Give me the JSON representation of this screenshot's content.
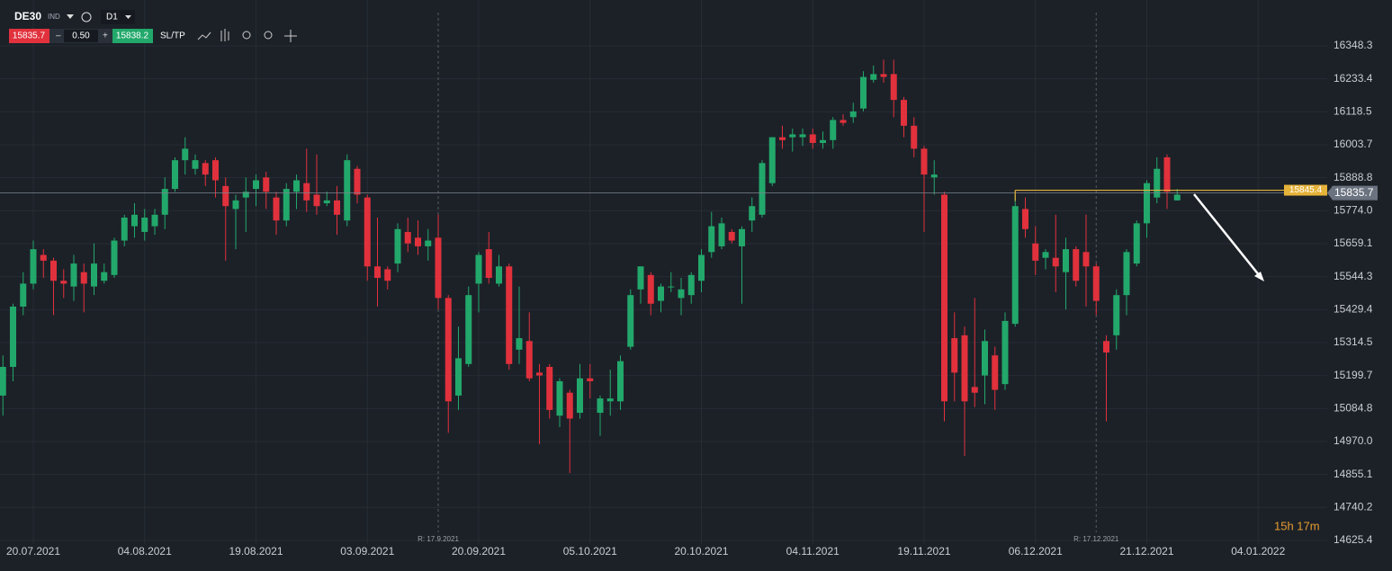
{
  "toolbar": {
    "symbol": "DE30",
    "symbol_type": "IND",
    "timeframe": "D1",
    "sell_price": "15835.7",
    "spread": "0.50",
    "buy_price": "15838.2",
    "sltp": "SL/TP"
  },
  "chart_data": {
    "type": "candlestick",
    "categories": [
      null,
      null,
      null,
      "20.07.2021",
      null,
      null,
      null,
      null,
      null,
      null,
      null,
      null,
      null,
      null,
      "04.08.2021",
      null,
      null,
      null,
      null,
      null,
      null,
      null,
      null,
      null,
      null,
      "19.08.2021",
      null,
      null,
      null,
      null,
      null,
      null,
      null,
      null,
      null,
      null,
      "03.09.2021",
      null,
      null,
      null,
      null,
      null,
      null,
      null,
      null,
      null,
      null,
      "20.09.2021",
      null,
      null,
      null,
      null,
      null,
      null,
      null,
      null,
      null,
      null,
      "05.10.2021",
      null,
      null,
      null,
      null,
      null,
      null,
      null,
      null,
      null,
      null,
      "20.10.2021",
      null,
      null,
      null,
      null,
      null,
      null,
      null,
      null,
      null,
      null,
      "04.11.2021",
      null,
      null,
      null,
      null,
      null,
      null,
      null,
      null,
      null,
      null,
      "19.11.2021",
      null,
      null,
      null,
      null,
      null,
      null,
      null,
      null,
      null,
      null,
      "06.12.2021",
      null,
      null,
      null,
      null,
      null,
      null,
      null,
      null,
      null,
      null,
      "21.12.2021",
      null,
      null,
      null,
      null,
      null,
      null,
      null,
      null,
      null,
      null,
      "04.01.2022"
    ],
    "open": [
      15130,
      15230,
      15440,
      15520,
      15620,
      15600,
      15530,
      15510,
      15560,
      15510,
      15530,
      15550,
      15670,
      15720,
      15700,
      15720,
      15760,
      15850,
      15950,
      15920,
      15940,
      15950,
      15860,
      15780,
      15820,
      15850,
      15890,
      15820,
      15740,
      15840,
      15870,
      15830,
      15800,
      15810,
      15740,
      15920,
      15820,
      15580,
      15570,
      15590,
      15700,
      15680,
      15650,
      15680,
      15470,
      15130,
      15240,
      15520,
      15640,
      15520,
      15580,
      15290,
      15320,
      15210,
      15230,
      15060,
      15140,
      15070,
      15190,
      15070,
      15110,
      15110,
      15300,
      15500,
      15550,
      15460,
      15510,
      15470,
      15480,
      15530,
      15630,
      15650,
      15700,
      15650,
      15740,
      15760,
      15870,
      16030,
      16030,
      16030,
      16040,
      16010,
      16020,
      16090,
      16100,
      16130,
      16230,
      16250,
      16250,
      16160,
      16070,
      15990,
      15890,
      15830,
      15330,
      15340,
      15160,
      15200,
      15270,
      15170,
      15380,
      15780,
      15660,
      15610,
      15610,
      15560,
      15640,
      15630,
      15580,
      15320,
      15340,
      15480,
      15590,
      15730,
      15820,
      15960,
      15810,
      null,
      null,
      null,
      null,
      null,
      null,
      null,
      null
    ],
    "high": [
      15270,
      15450,
      15560,
      15670,
      15640,
      15610,
      15570,
      15620,
      15590,
      15660,
      15590,
      15680,
      15760,
      15800,
      15780,
      15780,
      15890,
      15960,
      16030,
      15970,
      15950,
      15960,
      15890,
      15830,
      15890,
      15900,
      15910,
      15840,
      15870,
      15900,
      15990,
      15970,
      15840,
      15860,
      15970,
      15930,
      15830,
      15750,
      15580,
      15730,
      15750,
      15740,
      15710,
      15760,
      15480,
      15370,
      15510,
      15630,
      15700,
      15620,
      15590,
      15510,
      15420,
      15240,
      15240,
      15190,
      15150,
      15240,
      15240,
      15130,
      15220,
      15270,
      15500,
      15580,
      15560,
      15520,
      15560,
      15540,
      15560,
      15640,
      15770,
      15750,
      15710,
      15720,
      15820,
      15950,
      16030,
      16070,
      16060,
      16060,
      16060,
      16050,
      16100,
      16110,
      16150,
      16260,
      16280,
      16300,
      16300,
      16170,
      16100,
      16000,
      15950,
      15840,
      15420,
      15370,
      15470,
      15360,
      15300,
      15420,
      15830,
      15820,
      15720,
      15640,
      15760,
      15680,
      15650,
      15760,
      15590,
      15340,
      15500,
      15640,
      15740,
      15880,
      15960,
      15970,
      15850,
      null,
      null,
      null,
      null,
      null,
      null,
      null,
      null
    ],
    "low": [
      15060,
      15180,
      15410,
      15500,
      15540,
      15410,
      15470,
      15460,
      15420,
      15480,
      15520,
      15540,
      15650,
      15680,
      15670,
      15690,
      15710,
      15840,
      15900,
      15900,
      15860,
      15820,
      15600,
      15640,
      15700,
      15790,
      15780,
      15690,
      15720,
      15780,
      15770,
      15760,
      15790,
      15690,
      15720,
      15800,
      15530,
      15440,
      15500,
      15560,
      15630,
      15620,
      15600,
      15430,
      15000,
      15080,
      15230,
      15420,
      15520,
      15510,
      15220,
      15240,
      15180,
      14960,
      15050,
      15020,
      14860,
      15050,
      15120,
      14990,
      15060,
      15080,
      15290,
      15450,
      15410,
      15420,
      15490,
      15410,
      15450,
      15490,
      15610,
      15640,
      15660,
      15450,
      15700,
      15750,
      15860,
      15990,
      15980,
      16000,
      15990,
      15990,
      15990,
      16070,
      16080,
      16120,
      16220,
      16220,
      16100,
      16030,
      15960,
      15700,
      15830,
      15040,
      15110,
      14920,
      15090,
      15100,
      15080,
      15150,
      15370,
      15680,
      15550,
      15570,
      15490,
      15430,
      15510,
      15440,
      15410,
      15040,
      15290,
      15410,
      15580,
      15680,
      15800,
      15780,
      15810,
      null,
      null,
      null,
      null,
      null,
      null,
      null,
      null
    ],
    "close": [
      15230,
      15440,
      15520,
      15640,
      15600,
      15530,
      15520,
      15590,
      15520,
      15590,
      15560,
      15670,
      15750,
      15760,
      15750,
      15760,
      15850,
      15950,
      15990,
      15950,
      15900,
      15880,
      15790,
      15810,
      15840,
      15880,
      15840,
      15740,
      15850,
      15880,
      15810,
      15790,
      15810,
      15760,
      15950,
      15830,
      15580,
      15540,
      15530,
      15710,
      15660,
      15650,
      15670,
      15470,
      15110,
      15260,
      15480,
      15620,
      15540,
      15580,
      15240,
      15330,
      15190,
      15200,
      15080,
      15180,
      15050,
      15190,
      15180,
      15120,
      15120,
      15250,
      15480,
      15580,
      15450,
      15510,
      15510,
      15500,
      15550,
      15620,
      15720,
      15730,
      15670,
      15710,
      15790,
      15940,
      16030,
      16020,
      16040,
      16040,
      16010,
      16020,
      16090,
      16080,
      16120,
      16240,
      16250,
      16240,
      16160,
      16070,
      15990,
      15900,
      15900,
      15110,
      15210,
      15110,
      15140,
      15320,
      15150,
      15390,
      15790,
      15710,
      15600,
      15630,
      15580,
      15640,
      15530,
      15580,
      15460,
      15280,
      15480,
      15630,
      15730,
      15870,
      15920,
      15840,
      15830,
      null,
      null,
      null,
      null,
      null,
      null,
      null,
      null
    ],
    "colors": {
      "up": "#22a86b",
      "down": "#e1313c"
    },
    "ylim": [
      14625.4,
      16348.3
    ],
    "yticks": [
      16348.3,
      16233.4,
      16118.5,
      16003.7,
      15888.8,
      {
        "value": 15774,
        "label": "15774.0"
      },
      15659.1,
      15544.3,
      15429.4,
      15314.5,
      15199.7,
      15084.8,
      {
        "value": 14970,
        "label": "14970.0"
      },
      14855.1,
      14740.2,
      14625.4
    ],
    "current_price": 15835.7,
    "level": 15845.4,
    "markers": [
      "R: 17.9.2021",
      "R: 17.12.2021"
    ],
    "countdown": "15h 17m",
    "grid": true
  }
}
